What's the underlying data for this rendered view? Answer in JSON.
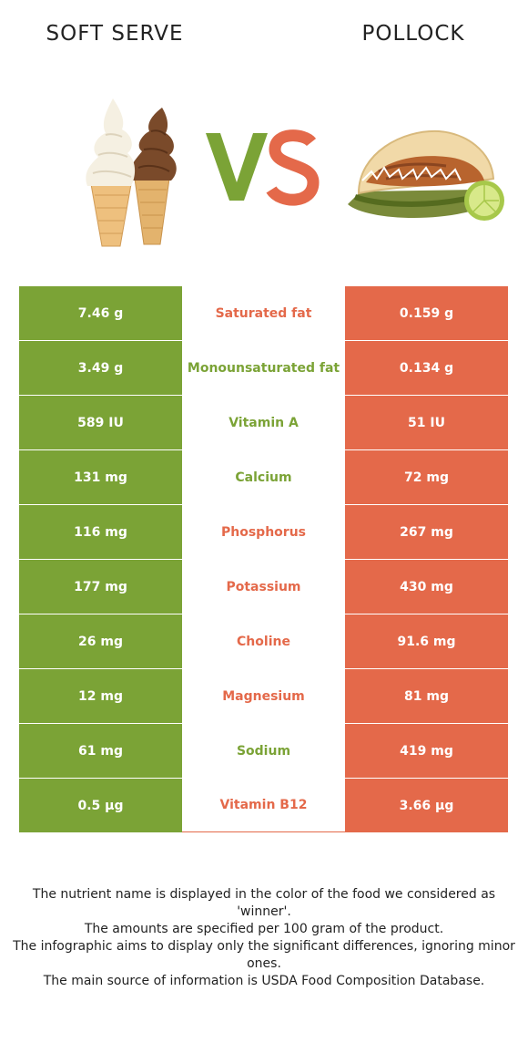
{
  "header": {
    "left_food": "SOFT SERVE",
    "right_food": "POLLOCK"
  },
  "colors": {
    "left": "#7ba336",
    "right": "#e4694a"
  },
  "icons": {
    "left_image": "soft-serve-cones-image",
    "right_image": "pollock-taco-image",
    "vs": "vs-logo"
  },
  "rows": [
    {
      "nutrient": "Saturated fat",
      "left": "7.46 g",
      "right": "0.159 g",
      "winner": "right"
    },
    {
      "nutrient": "Monounsaturated fat",
      "left": "3.49 g",
      "right": "0.134 g",
      "winner": "left"
    },
    {
      "nutrient": "Vitamin A",
      "left": "589 IU",
      "right": "51 IU",
      "winner": "left"
    },
    {
      "nutrient": "Calcium",
      "left": "131 mg",
      "right": "72 mg",
      "winner": "left"
    },
    {
      "nutrient": "Phosphorus",
      "left": "116 mg",
      "right": "267 mg",
      "winner": "right"
    },
    {
      "nutrient": "Potassium",
      "left": "177 mg",
      "right": "430 mg",
      "winner": "right"
    },
    {
      "nutrient": "Choline",
      "left": "26 mg",
      "right": "91.6 mg",
      "winner": "right"
    },
    {
      "nutrient": "Magnesium",
      "left": "12 mg",
      "right": "81 mg",
      "winner": "right"
    },
    {
      "nutrient": "Sodium",
      "left": "61 mg",
      "right": "419 mg",
      "winner": "left"
    },
    {
      "nutrient": "Vitamin B12",
      "left": "0.5 µg",
      "right": "3.66 µg",
      "winner": "right"
    }
  ],
  "footnote": {
    "line1": "The nutrient name is displayed in the color of the food we considered as 'winner'.",
    "line2": "The amounts are specified per 100 gram of the product.",
    "line3": "The infographic aims to display only the significant differences, ignoring minor ones.",
    "line4": "The main source of information is USDA Food Composition Database."
  }
}
